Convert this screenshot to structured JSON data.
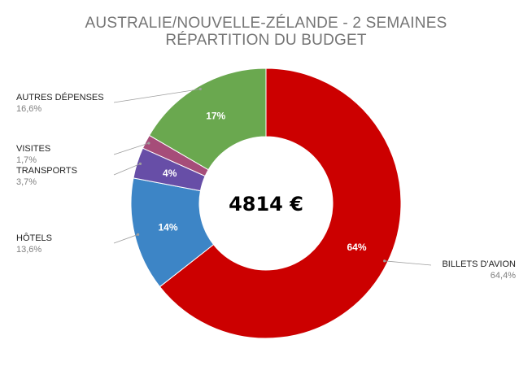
{
  "chart_data": {
    "type": "pie",
    "donut": true,
    "title": "AUSTRALIE/NOUVELLE-ZÉLANDE - 2 SEMAINES",
    "subtitle": "RÉPARTITION DU BUDGET",
    "center_label": "4814 €",
    "legend": "callouts",
    "slices": [
      {
        "name": "BILLETS D'AVION",
        "value": 64.4,
        "value_label": "64,4%",
        "inner_label": "64%",
        "color": "#cc0000"
      },
      {
        "name": "HÔTELS",
        "value": 13.6,
        "value_label": "13,6%",
        "inner_label": "14%",
        "color": "#3d85c6"
      },
      {
        "name": "TRANSPORTS",
        "value": 3.7,
        "value_label": "3,7%",
        "inner_label": "4%",
        "color": "#674ea7"
      },
      {
        "name": "VISITES",
        "value": 1.7,
        "value_label": "1,7%",
        "inner_label": "",
        "color": "#a64d79"
      },
      {
        "name": "AUTRES DÉPENSES",
        "value": 16.6,
        "value_label": "16,6%",
        "inner_label": "17%",
        "color": "#6aa84f"
      }
    ]
  }
}
